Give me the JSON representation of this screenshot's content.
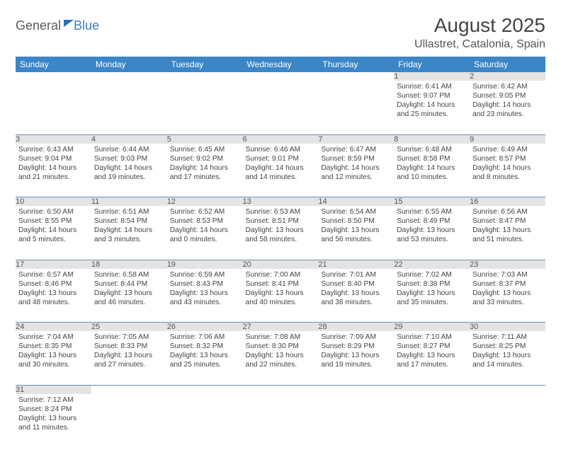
{
  "colors": {
    "header_bg": "#3b86c6",
    "header_text": "#ffffff",
    "daynum_bg": "#e4e4e4",
    "row_divider": "#6a8fb8",
    "logo_general": "#5a5a5a",
    "logo_blue": "#3b7fc4",
    "title_color": "#444444",
    "location_color": "#555555",
    "body_text": "#444444",
    "page_bg": "#ffffff"
  },
  "typography": {
    "month_title_pt": 28,
    "location_pt": 16,
    "weekday_header_pt": 12,
    "daynum_pt": 11,
    "daybody_pt": 10.2,
    "logo_pt": 18
  },
  "logo": {
    "general": "General",
    "blue": "Blue"
  },
  "title": {
    "month": "August 2025",
    "location": "Ullastret, Catalonia, Spain"
  },
  "weekdays": [
    "Sunday",
    "Monday",
    "Tuesday",
    "Wednesday",
    "Thursday",
    "Friday",
    "Saturday"
  ],
  "weeks": [
    [
      null,
      null,
      null,
      null,
      null,
      {
        "num": "1",
        "sunrise": "Sunrise: 6:41 AM",
        "sunset": "Sunset: 9:07 PM",
        "daylight": "Daylight: 14 hours and 25 minutes."
      },
      {
        "num": "2",
        "sunrise": "Sunrise: 6:42 AM",
        "sunset": "Sunset: 9:05 PM",
        "daylight": "Daylight: 14 hours and 23 minutes."
      }
    ],
    [
      {
        "num": "3",
        "sunrise": "Sunrise: 6:43 AM",
        "sunset": "Sunset: 9:04 PM",
        "daylight": "Daylight: 14 hours and 21 minutes."
      },
      {
        "num": "4",
        "sunrise": "Sunrise: 6:44 AM",
        "sunset": "Sunset: 9:03 PM",
        "daylight": "Daylight: 14 hours and 19 minutes."
      },
      {
        "num": "5",
        "sunrise": "Sunrise: 6:45 AM",
        "sunset": "Sunset: 9:02 PM",
        "daylight": "Daylight: 14 hours and 17 minutes."
      },
      {
        "num": "6",
        "sunrise": "Sunrise: 6:46 AM",
        "sunset": "Sunset: 9:01 PM",
        "daylight": "Daylight: 14 hours and 14 minutes."
      },
      {
        "num": "7",
        "sunrise": "Sunrise: 6:47 AM",
        "sunset": "Sunset: 8:59 PM",
        "daylight": "Daylight: 14 hours and 12 minutes."
      },
      {
        "num": "8",
        "sunrise": "Sunrise: 6:48 AM",
        "sunset": "Sunset: 8:58 PM",
        "daylight": "Daylight: 14 hours and 10 minutes."
      },
      {
        "num": "9",
        "sunrise": "Sunrise: 6:49 AM",
        "sunset": "Sunset: 8:57 PM",
        "daylight": "Daylight: 14 hours and 8 minutes."
      }
    ],
    [
      {
        "num": "10",
        "sunrise": "Sunrise: 6:50 AM",
        "sunset": "Sunset: 8:55 PM",
        "daylight": "Daylight: 14 hours and 5 minutes."
      },
      {
        "num": "11",
        "sunrise": "Sunrise: 6:51 AM",
        "sunset": "Sunset: 8:54 PM",
        "daylight": "Daylight: 14 hours and 3 minutes."
      },
      {
        "num": "12",
        "sunrise": "Sunrise: 6:52 AM",
        "sunset": "Sunset: 8:53 PM",
        "daylight": "Daylight: 14 hours and 0 minutes."
      },
      {
        "num": "13",
        "sunrise": "Sunrise: 6:53 AM",
        "sunset": "Sunset: 8:51 PM",
        "daylight": "Daylight: 13 hours and 58 minutes."
      },
      {
        "num": "14",
        "sunrise": "Sunrise: 6:54 AM",
        "sunset": "Sunset: 8:50 PM",
        "daylight": "Daylight: 13 hours and 56 minutes."
      },
      {
        "num": "15",
        "sunrise": "Sunrise: 6:55 AM",
        "sunset": "Sunset: 8:49 PM",
        "daylight": "Daylight: 13 hours and 53 minutes."
      },
      {
        "num": "16",
        "sunrise": "Sunrise: 6:56 AM",
        "sunset": "Sunset: 8:47 PM",
        "daylight": "Daylight: 13 hours and 51 minutes."
      }
    ],
    [
      {
        "num": "17",
        "sunrise": "Sunrise: 6:57 AM",
        "sunset": "Sunset: 8:46 PM",
        "daylight": "Daylight: 13 hours and 48 minutes."
      },
      {
        "num": "18",
        "sunrise": "Sunrise: 6:58 AM",
        "sunset": "Sunset: 8:44 PM",
        "daylight": "Daylight: 13 hours and 46 minutes."
      },
      {
        "num": "19",
        "sunrise": "Sunrise: 6:59 AM",
        "sunset": "Sunset: 8:43 PM",
        "daylight": "Daylight: 13 hours and 43 minutes."
      },
      {
        "num": "20",
        "sunrise": "Sunrise: 7:00 AM",
        "sunset": "Sunset: 8:41 PM",
        "daylight": "Daylight: 13 hours and 40 minutes."
      },
      {
        "num": "21",
        "sunrise": "Sunrise: 7:01 AM",
        "sunset": "Sunset: 8:40 PM",
        "daylight": "Daylight: 13 hours and 38 minutes."
      },
      {
        "num": "22",
        "sunrise": "Sunrise: 7:02 AM",
        "sunset": "Sunset: 8:38 PM",
        "daylight": "Daylight: 13 hours and 35 minutes."
      },
      {
        "num": "23",
        "sunrise": "Sunrise: 7:03 AM",
        "sunset": "Sunset: 8:37 PM",
        "daylight": "Daylight: 13 hours and 33 minutes."
      }
    ],
    [
      {
        "num": "24",
        "sunrise": "Sunrise: 7:04 AM",
        "sunset": "Sunset: 8:35 PM",
        "daylight": "Daylight: 13 hours and 30 minutes."
      },
      {
        "num": "25",
        "sunrise": "Sunrise: 7:05 AM",
        "sunset": "Sunset: 8:33 PM",
        "daylight": "Daylight: 13 hours and 27 minutes."
      },
      {
        "num": "26",
        "sunrise": "Sunrise: 7:06 AM",
        "sunset": "Sunset: 8:32 PM",
        "daylight": "Daylight: 13 hours and 25 minutes."
      },
      {
        "num": "27",
        "sunrise": "Sunrise: 7:08 AM",
        "sunset": "Sunset: 8:30 PM",
        "daylight": "Daylight: 13 hours and 22 minutes."
      },
      {
        "num": "28",
        "sunrise": "Sunrise: 7:09 AM",
        "sunset": "Sunset: 8:29 PM",
        "daylight": "Daylight: 13 hours and 19 minutes."
      },
      {
        "num": "29",
        "sunrise": "Sunrise: 7:10 AM",
        "sunset": "Sunset: 8:27 PM",
        "daylight": "Daylight: 13 hours and 17 minutes."
      },
      {
        "num": "30",
        "sunrise": "Sunrise: 7:11 AM",
        "sunset": "Sunset: 8:25 PM",
        "daylight": "Daylight: 13 hours and 14 minutes."
      }
    ],
    [
      {
        "num": "31",
        "sunrise": "Sunrise: 7:12 AM",
        "sunset": "Sunset: 8:24 PM",
        "daylight": "Daylight: 13 hours and 11 minutes."
      },
      null,
      null,
      null,
      null,
      null,
      null
    ]
  ]
}
